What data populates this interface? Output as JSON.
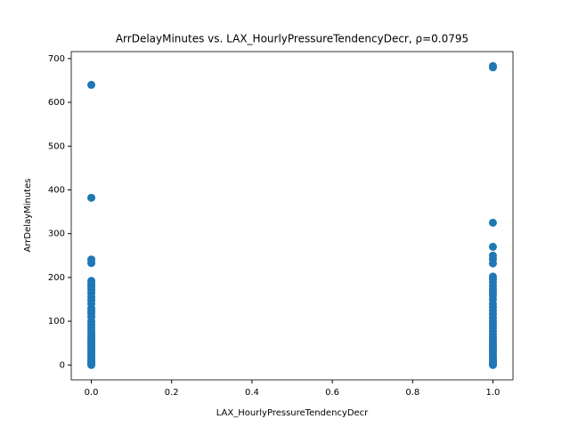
{
  "chart_data": {
    "type": "scatter",
    "title": "ArrDelayMinutes vs. LAX_HourlyPressureTendencyDecr, ρ=0.0795",
    "x_label": "LAX_HourlyPressureTendencyDecr",
    "y_label": "ArrDelayMinutes",
    "color": "#1f77b4",
    "x": [
      0,
      0,
      0,
      0,
      0,
      0,
      0,
      0,
      0,
      0,
      0,
      0,
      0,
      0,
      0,
      0,
      0,
      0,
      0,
      0,
      0,
      0,
      0,
      0,
      0,
      0,
      0,
      0,
      0,
      0,
      0,
      0,
      0,
      0,
      0,
      0,
      0,
      0,
      1,
      1,
      1,
      1,
      1,
      1,
      1,
      1,
      1,
      1,
      1,
      1,
      1,
      1,
      1,
      1,
      1,
      1,
      1,
      1,
      1,
      1,
      1,
      1,
      1,
      1,
      1,
      1,
      1,
      1,
      1,
      1,
      1,
      1,
      1,
      1,
      1,
      1,
      1,
      1,
      1,
      1
    ],
    "values": [
      640,
      382,
      241,
      233,
      192,
      186,
      180,
      172,
      164,
      155,
      148,
      140,
      130,
      124,
      118,
      110,
      100,
      92,
      85,
      78,
      72,
      66,
      60,
      55,
      50,
      45,
      40,
      35,
      30,
      25,
      20,
      15,
      12,
      8,
      5,
      3,
      1,
      0,
      683,
      680,
      325,
      270,
      250,
      242,
      232,
      202,
      196,
      188,
      180,
      172,
      165,
      158,
      150,
      140,
      132,
      124,
      116,
      108,
      100,
      92,
      85,
      78,
      70,
      64,
      58,
      52,
      46,
      40,
      35,
      30,
      25,
      20,
      15,
      12,
      8,
      5,
      3,
      1,
      0,
      10
    ],
    "xlim": [
      -0.05,
      1.05
    ],
    "xticks": [
      {
        "value": 0,
        "label": "0.0"
      },
      {
        "value": 0.2,
        "label": "0.2"
      },
      {
        "value": 0.4,
        "label": "0.4"
      },
      {
        "value": 0.6,
        "label": "0.6"
      },
      {
        "value": 0.8,
        "label": "0.8"
      },
      {
        "value": 1,
        "label": "1.0"
      }
    ],
    "ylim": [
      -34,
      716
    ],
    "yticks": [
      0,
      100,
      200,
      300,
      400,
      500,
      600,
      700
    ]
  }
}
